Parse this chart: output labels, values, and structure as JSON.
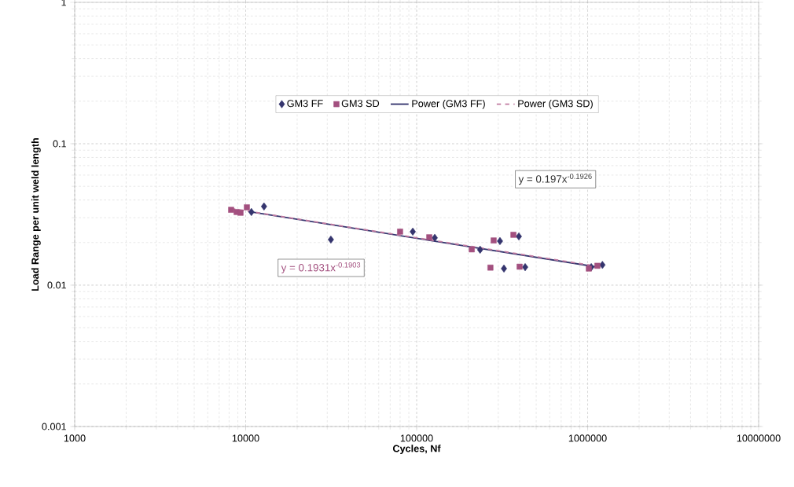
{
  "chart_data": {
    "type": "scatter",
    "xlabel": "Cycles, Nf",
    "ylabel": "Load Range per unit weld length",
    "log": "xy",
    "xlim": [
      1000,
      10000000
    ],
    "ylim": [
      0.001,
      1
    ],
    "xticks": [
      1000,
      10000,
      100000,
      1000000,
      10000000
    ],
    "yticks": [
      0.001,
      0.01,
      0.1,
      1
    ],
    "grid": true,
    "legend": "top",
    "annotations": [
      "y = 0.197x$^{-0.1926}$",
      "y = 0.1931x$^{-0.1903}$"
    ],
    "series": [
      {
        "name": "GM3 FF",
        "color": "#35356e",
        "marker": "diamond",
        "x": [
          10800,
          12800,
          31500,
          94900,
          127600,
          235000,
          307000,
          324000,
          396000,
          431000,
          1050000,
          1220000
        ],
        "values": [
          0.0329,
          0.036,
          0.021,
          0.0239,
          0.0216,
          0.0178,
          0.0205,
          0.0131,
          0.0221,
          0.0134,
          0.0134,
          0.0139
        ]
      },
      {
        "name": "GM3 SD",
        "color": "#a3507f",
        "marker": "square",
        "x": [
          8220,
          8850,
          9330,
          10160,
          80000,
          118500,
          210000,
          270000,
          282000,
          368000,
          400000,
          1016000,
          1140000
        ],
        "values": [
          0.0341,
          0.0329,
          0.0325,
          0.0355,
          0.0239,
          0.0218,
          0.0179,
          0.0133,
          0.0207,
          0.0227,
          0.0135,
          0.0131,
          0.0137
        ]
      },
      {
        "name": "Power (GM3 FF)",
        "type": "line",
        "color": "#35356e",
        "marker": "none",
        "line_style": "solid",
        "x": [
          10800,
          1180000
        ],
        "values": [
          0.0329,
          0.01334
        ]
      },
      {
        "name": "Power (GM3 SD)",
        "type": "line",
        "color": "#c07aa0",
        "marker": "none",
        "line_style": "dashed",
        "x": [
          8220,
          1140000
        ],
        "values": [
          0.0348,
          0.01358
        ]
      }
    ]
  }
}
